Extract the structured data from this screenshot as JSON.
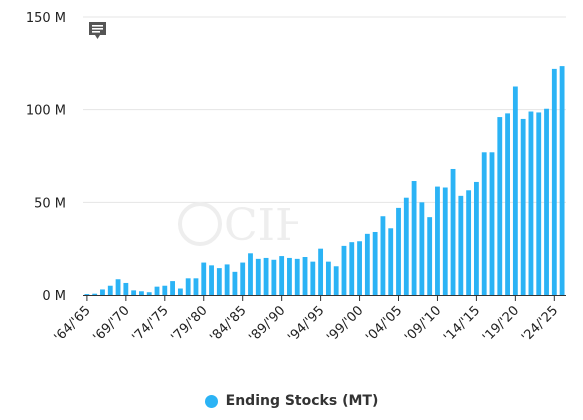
{
  "colors": {
    "bar": "#2bb3f5",
    "grid": "#e4e4e4",
    "axis": "#333333",
    "legend_dot": "#2bb3f5"
  },
  "annotation_icon": "speech-bubble-icon",
  "watermark_text": "CIH",
  "legend": {
    "label": "Ending Stocks (MT)"
  },
  "chart_data": {
    "type": "bar",
    "title": "",
    "xlabel": "",
    "ylabel": "",
    "ylim": [
      0,
      150000000
    ],
    "yticks": [
      {
        "value": 0,
        "label": "0 M"
      },
      {
        "value": 50000000,
        "label": "50 M"
      },
      {
        "value": 100000000,
        "label": "100 M"
      },
      {
        "value": 150000000,
        "label": "150 M"
      }
    ],
    "grid": true,
    "legend_position": "bottom-center",
    "xtick_labels": [
      "'64/'65",
      "'69/'70",
      "'74/'75",
      "'79/'80",
      "'84/'85",
      "'89/'90",
      "'94/'95",
      "'99/'00",
      "'04/'05",
      "'09/'10",
      "'14/'15",
      "'19/'20",
      "'24/'25"
    ],
    "categories": [
      "'64/'65",
      "'65/'66",
      "'66/'67",
      "'67/'68",
      "'68/'69",
      "'69/'70",
      "'70/'71",
      "'71/'72",
      "'72/'73",
      "'73/'74",
      "'74/'75",
      "'75/'76",
      "'76/'77",
      "'77/'78",
      "'78/'79",
      "'79/'80",
      "'80/'81",
      "'81/'82",
      "'82/'83",
      "'83/'84",
      "'84/'85",
      "'85/'86",
      "'86/'87",
      "'87/'88",
      "'88/'89",
      "'89/'90",
      "'90/'91",
      "'91/'92",
      "'92/'93",
      "'93/'94",
      "'94/'95",
      "'95/'96",
      "'96/'97",
      "'97/'98",
      "'98/'99",
      "'99/'00",
      "'00/'01",
      "'01/'02",
      "'02/'03",
      "'03/'04",
      "'04/'05",
      "'05/'06",
      "'06/'07",
      "'07/'08",
      "'08/'09",
      "'09/'10",
      "'10/'11",
      "'11/'12",
      "'12/'13",
      "'13/'14",
      "'14/'15",
      "'15/'16",
      "'16/'17",
      "'17/'18",
      "'18/'19",
      "'19/'20",
      "'20/'21",
      "'21/'22",
      "'22/'23",
      "'23/'24",
      "'24/'25",
      "'25/'26"
    ],
    "series": [
      {
        "name": "Ending Stocks (MT)",
        "values": [
          500000,
          700000,
          3000000,
          5000000,
          8500000,
          6500000,
          2500000,
          2000000,
          1500000,
          4500000,
          5000000,
          7500000,
          3500000,
          9000000,
          9000000,
          17500000,
          16000000,
          14500000,
          16500000,
          12500000,
          17500000,
          22500000,
          19500000,
          20000000,
          19000000,
          21000000,
          20000000,
          19500000,
          20500000,
          18000000,
          25000000,
          18000000,
          15500000,
          26500000,
          28500000,
          29000000,
          33000000,
          34000000,
          42500000,
          36000000,
          47000000,
          52500000,
          61500000,
          50000000,
          42000000,
          58500000,
          58000000,
          68000000,
          53500000,
          56500000,
          61000000,
          77000000,
          77000000,
          96000000,
          98000000,
          112500000,
          95000000,
          99000000,
          98500000,
          100500000,
          122000000,
          123500000
        ]
      }
    ]
  }
}
